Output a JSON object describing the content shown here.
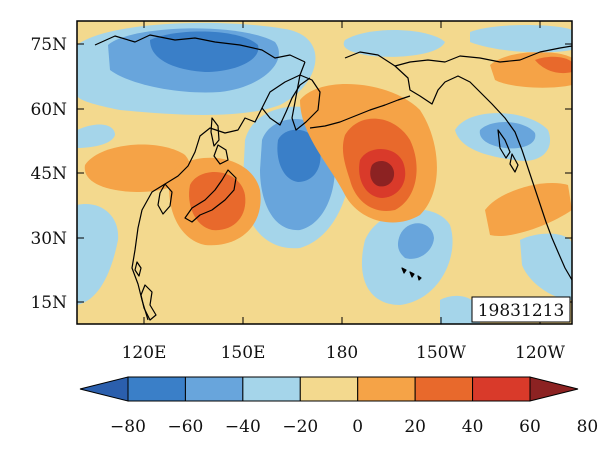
{
  "map": {
    "date_label": "19831213",
    "lat_labels": [
      "75N",
      "60N",
      "45N",
      "30N",
      "15N"
    ],
    "lon_labels": [
      "120E",
      "150E",
      "180",
      "150W",
      "120W"
    ]
  },
  "colorbar": {
    "tick_labels": [
      "−80",
      "−60",
      "−40",
      "−20",
      "0",
      "20",
      "40",
      "60",
      "80"
    ],
    "colors": [
      "#2b5fad",
      "#3a7fc8",
      "#68a5dc",
      "#a5d5ea",
      "#f3d98e",
      "#f5a347",
      "#e8692c",
      "#d93a2a",
      "#8c2222"
    ]
  },
  "palette": {
    "zero_band": "#f3d98e",
    "neg20": "#a5d5ea",
    "neg40": "#68a5dc",
    "neg60": "#3a7fc8",
    "pos20": "#f5a347",
    "pos40": "#e8692c",
    "pos60": "#d93a2a",
    "pos80": "#8c2222"
  }
}
